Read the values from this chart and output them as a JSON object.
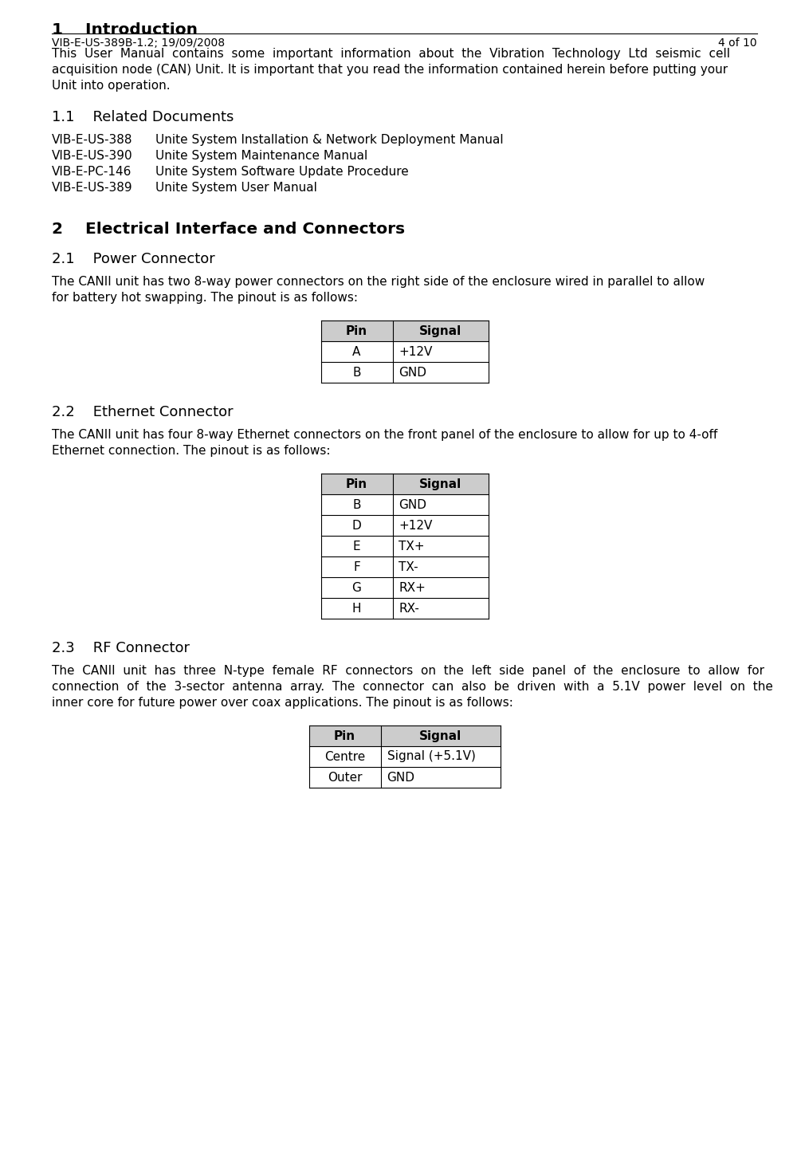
{
  "bg_color": "#ffffff",
  "text_color": "#000000",
  "footer_left": "VIB-E-US-389B-1.2; 19/09/2008",
  "footer_right": "4 of 10",
  "h1_number": "1",
  "h1_title": "Introduction",
  "intro_lines": [
    "This  User  Manual  contains  some  important  information  about  the  Vibration  Technology  Ltd  seismic  cell",
    "acquisition node (CAN) Unit. It is important that you read the information contained herein before putting your",
    "Unit into operation."
  ],
  "h11_number": "1.1",
  "h11_title": "Related Documents",
  "related_docs": [
    [
      "VIB-E-US-388",
      "Unite System Installation & Network Deployment Manual"
    ],
    [
      "VIB-E-US-390",
      "Unite System Maintenance Manual"
    ],
    [
      "VIB-E-PC-146",
      "Unite System Software Update Procedure"
    ],
    [
      "VIB-E-US-389",
      "Unite System User Manual"
    ]
  ],
  "h2_number": "2",
  "h2_title": "Electrical Interface and Connectors",
  "h21_number": "2.1",
  "h21_title": "Power Connector",
  "power_lines": [
    "The CANII unit has two 8-way power connectors on the right side of the enclosure wired in parallel to allow",
    "for battery hot swapping. The pinout is as follows:"
  ],
  "power_table_header": [
    "Pin",
    "Signal"
  ],
  "power_table_rows": [
    [
      "A",
      "+12V"
    ],
    [
      "B",
      "GND"
    ]
  ],
  "h22_number": "2.2",
  "h22_title": "Ethernet Connector",
  "ethernet_lines": [
    "The CANII unit has four 8-way Ethernet connectors on the front panel of the enclosure to allow for up to 4-off",
    "Ethernet connection. The pinout is as follows:"
  ],
  "ethernet_table_header": [
    "Pin",
    "Signal"
  ],
  "ethernet_table_rows": [
    [
      "B",
      "GND"
    ],
    [
      "D",
      "+12V"
    ],
    [
      "E",
      "TX+"
    ],
    [
      "F",
      "TX-"
    ],
    [
      "G",
      "RX+"
    ],
    [
      "H",
      "RX-"
    ]
  ],
  "h23_number": "2.3",
  "h23_title": "RF Connector",
  "rf_lines": [
    "The  CANII  unit  has  three  N-type  female  RF  connectors  on  the  left  side  panel  of  the  enclosure  to  allow  for",
    "connection  of  the  3-sector  antenna  array.  The  connector  can  also  be  driven  with  a  5.1V  power  level  on  the",
    "inner core for future power over coax applications. The pinout is as follows:"
  ],
  "rf_table_header": [
    "Pin",
    "Signal"
  ],
  "rf_table_rows": [
    [
      "Centre",
      "Signal (+5.1V)"
    ],
    [
      "Outer",
      "GND"
    ]
  ]
}
